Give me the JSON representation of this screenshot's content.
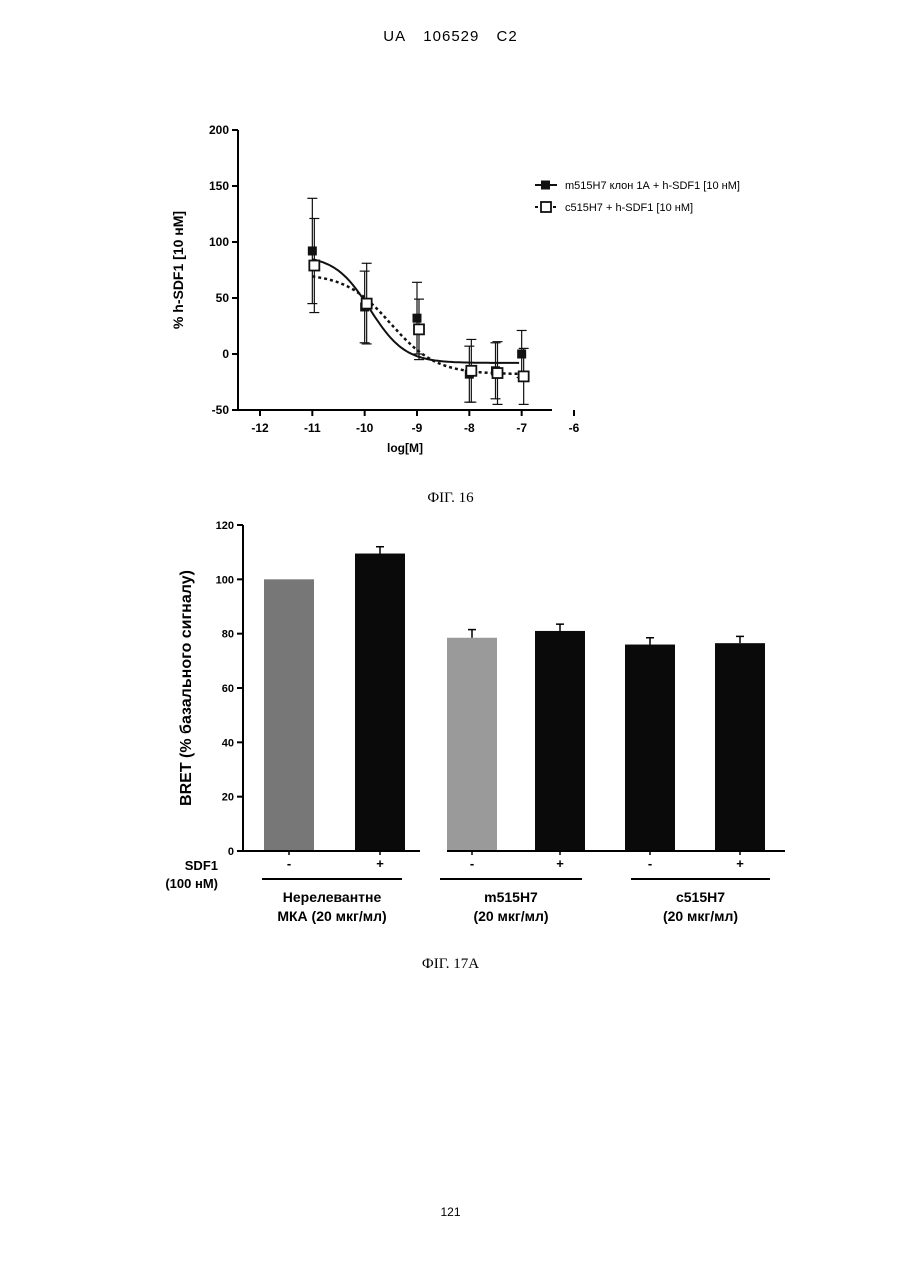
{
  "header": {
    "country": "UA",
    "number": "106529",
    "kind": "C2"
  },
  "figures": {
    "fig16_caption": "ФІГ. 16",
    "fig17a_caption": "ФІГ. 17А"
  },
  "page_number": "121",
  "chart_data": [
    {
      "type": "scatter",
      "title": "",
      "xlabel": "log[M]",
      "ylabel": "% h-SDF1 [10 нМ]",
      "xlim": [
        -12,
        -6
      ],
      "ylim": [
        -50,
        200
      ],
      "xticks": [
        "-12",
        "-11",
        "-10",
        "-9",
        "-8",
        "-7",
        "-6"
      ],
      "yticks": [
        "-50",
        "0",
        "50",
        "100",
        "150",
        "200"
      ],
      "legend_position": "top-right",
      "fit": "sigmoidal dose-response",
      "series": [
        {
          "name": "m515H7 клон 1А + h-SDF1 [10 нМ]",
          "marker": "filled-square",
          "line": "solid",
          "points": [
            {
              "x": -11,
              "y": 92,
              "err": 47
            },
            {
              "x": -10,
              "y": 42,
              "err": 32
            },
            {
              "x": -9,
              "y": 32,
              "err": 32
            },
            {
              "x": -8,
              "y": -18,
              "err": 25
            },
            {
              "x": -7.5,
              "y": -15,
              "err": 25
            },
            {
              "x": -7,
              "y": 0,
              "err": 21
            }
          ],
          "fit_params": {
            "top": 88,
            "bottom": -8,
            "log_ec50": -9.9,
            "hill": 1.3
          }
        },
        {
          "name": "c515H7 + h-SDF1 [10 нМ]",
          "marker": "open-square",
          "line": "dotted",
          "points": [
            {
              "x": -11,
              "y": 79,
              "err": 42
            },
            {
              "x": -10,
              "y": 45,
              "err": 36
            },
            {
              "x": -9,
              "y": 22,
              "err": 27
            },
            {
              "x": -8,
              "y": -15,
              "err": 28
            },
            {
              "x": -7.5,
              "y": -17,
              "err": 28
            },
            {
              "x": -7,
              "y": -20,
              "err": 25
            }
          ],
          "fit_params": {
            "top": 72,
            "bottom": -18,
            "log_ec50": -9.5,
            "hill": 1.0
          }
        }
      ],
      "colors": {
        "series": "#111111"
      }
    },
    {
      "type": "bar",
      "title": "",
      "xlabel": "",
      "ylabel": "BRET (% базального сигналу)",
      "ylim": [
        0,
        120
      ],
      "yticks": [
        "0",
        "20",
        "40",
        "60",
        "80",
        "100",
        "120"
      ],
      "row_label_line1": "SDF1",
      "row_label_line2": "(100 нМ)",
      "sdf_labels": [
        "-",
        "+",
        "-",
        "+",
        "-",
        "+"
      ],
      "values": [
        100,
        109.5,
        78.5,
        81,
        76,
        76.5
      ],
      "errors": [
        0,
        2.5,
        3,
        2.5,
        2.5,
        2.5
      ],
      "bar_colors": [
        "#777777",
        "#0a0a0a",
        "#9a9a9a",
        "#0a0a0a",
        "#0a0a0a",
        "#0a0a0a"
      ],
      "groups": [
        {
          "line1": "Нерелевантне",
          "line2": "МКА (20 мкг/мл)"
        },
        {
          "line1": "m515H7",
          "line2": "(20 мкг/мл)"
        },
        {
          "line1": "c515H7",
          "line2": "(20 мкг/мл)"
        }
      ]
    }
  ]
}
